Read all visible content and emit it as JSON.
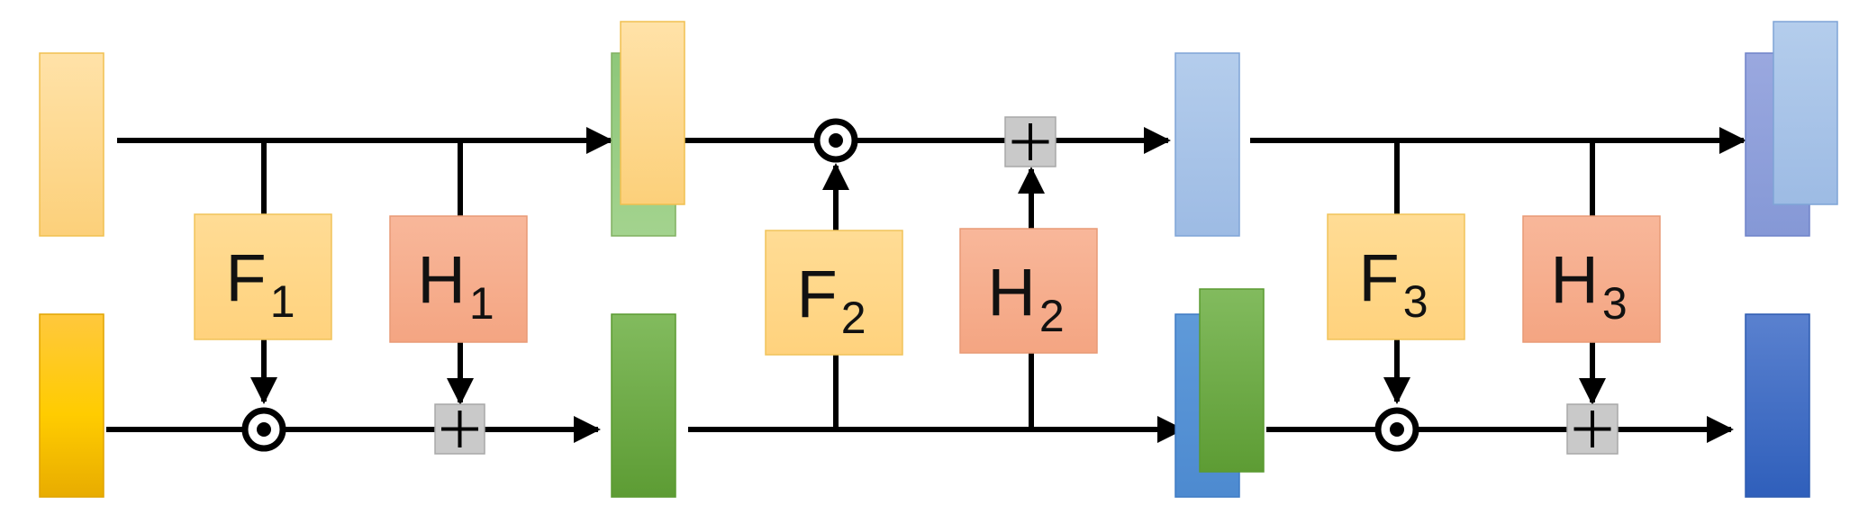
{
  "blocks": {
    "F1": {
      "main": "F",
      "sub": "1"
    },
    "H1": {
      "main": "H",
      "sub": "1"
    },
    "F2": {
      "main": "F",
      "sub": "2"
    },
    "H2": {
      "main": "H",
      "sub": "2"
    },
    "F3": {
      "main": "F",
      "sub": "3"
    },
    "H3": {
      "main": "H",
      "sub": "3"
    }
  },
  "colors": {
    "line": "#000000",
    "f_block": "#ffd98a",
    "h_block": "#f6ad8c",
    "plus_box": "#c9c9c9",
    "yellow_light": "#ffd88e",
    "yellow_dark": "#f4b400",
    "green": "#6aaa44",
    "blue_light": "#a4c2e6",
    "blue_dark": "#3a6fc6"
  },
  "operators": {
    "multiply": "hadamard-product",
    "add": "plus"
  }
}
